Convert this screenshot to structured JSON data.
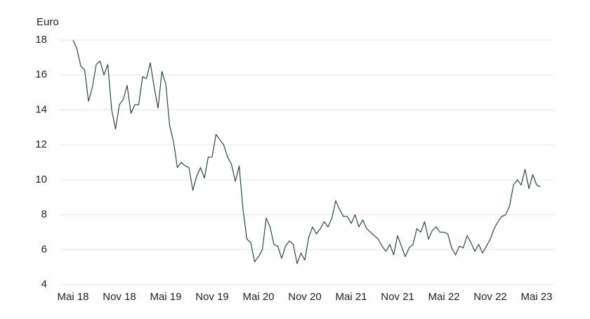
{
  "chart_data": {
    "type": "line",
    "y_label": "Euro",
    "color": "#2f4646",
    "ylim": [
      4,
      18
    ],
    "yticks": [
      4,
      6,
      8,
      10,
      12,
      14,
      16,
      18
    ],
    "grid": true,
    "categories": [
      "Mai 18",
      null,
      null,
      null,
      null,
      null,
      null,
      null,
      null,
      null,
      null,
      null,
      "Nov 18",
      null,
      null,
      null,
      null,
      null,
      null,
      null,
      null,
      null,
      null,
      null,
      "Mai 19",
      null,
      null,
      null,
      null,
      null,
      null,
      null,
      null,
      null,
      null,
      null,
      "Nov 19",
      null,
      null,
      null,
      null,
      null,
      null,
      null,
      null,
      null,
      null,
      null,
      "Mai 20",
      null,
      null,
      null,
      null,
      null,
      null,
      null,
      null,
      null,
      null,
      null,
      "Nov 20",
      null,
      null,
      null,
      null,
      null,
      null,
      null,
      null,
      null,
      null,
      null,
      "Mai 21",
      null,
      null,
      null,
      null,
      null,
      null,
      null,
      null,
      null,
      null,
      null,
      "Nov 21",
      null,
      null,
      null,
      null,
      null,
      null,
      null,
      null,
      null,
      null,
      null,
      "Mai 22",
      null,
      null,
      null,
      null,
      null,
      null,
      null,
      null,
      null,
      null,
      null,
      "Nov 22",
      null,
      null,
      null,
      null,
      null,
      null,
      null,
      null,
      null,
      null,
      null,
      "Mai 23",
      null
    ],
    "values": [
      18.0,
      17.5,
      16.5,
      16.3,
      14.5,
      15.3,
      16.6,
      16.8,
      16.0,
      16.6,
      14.0,
      12.9,
      14.3,
      14.6,
      15.4,
      13.8,
      14.3,
      14.3,
      15.9,
      15.8,
      16.7,
      15.3,
      14.1,
      16.2,
      15.5,
      13.1,
      12.2,
      10.7,
      11.0,
      10.8,
      10.7,
      9.4,
      10.2,
      10.7,
      10.1,
      11.3,
      11.3,
      12.6,
      12.3,
      12.0,
      11.3,
      10.9,
      9.9,
      10.8,
      8.3,
      6.6,
      6.4,
      5.3,
      5.6,
      6.0,
      7.8,
      7.3,
      6.3,
      6.2,
      5.5,
      6.2,
      6.5,
      6.3,
      5.2,
      5.8,
      5.4,
      6.7,
      7.3,
      6.9,
      7.2,
      7.6,
      7.3,
      7.8,
      8.8,
      8.3,
      7.9,
      7.9,
      7.5,
      8.0,
      7.3,
      7.7,
      7.2,
      7.0,
      6.8,
      6.6,
      6.2,
      5.9,
      6.3,
      5.7,
      6.8,
      6.2,
      5.6,
      6.1,
      6.3,
      7.2,
      7.0,
      7.6,
      6.6,
      7.1,
      7.3,
      7.0,
      7.0,
      6.9,
      6.1,
      5.7,
      6.2,
      6.1,
      6.8,
      6.4,
      5.9,
      6.3,
      5.8,
      6.2,
      6.6,
      7.2,
      7.6,
      7.9,
      8.0,
      8.5,
      9.7,
      10.0,
      9.7,
      10.6,
      9.5,
      10.3,
      9.7,
      9.6
    ]
  }
}
